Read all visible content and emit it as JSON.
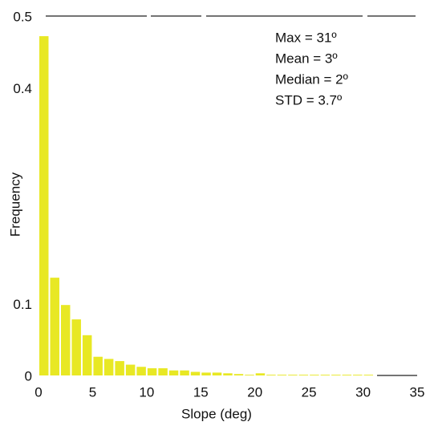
{
  "chart_data": {
    "type": "histogram",
    "xlabel": "Slope (deg)",
    "ylabel": "Frequency",
    "annotations": [
      "Max = 31º",
      "Mean = 3º",
      "Median = 2º",
      "STD = 3.7º"
    ],
    "bins": [
      0,
      1,
      2,
      3,
      4,
      5,
      6,
      7,
      8,
      9,
      10,
      11,
      12,
      13,
      14,
      15,
      16,
      17,
      18,
      19,
      20,
      21,
      22,
      23,
      24,
      25,
      26,
      27,
      28,
      29,
      30,
      31
    ],
    "counts": [
      0.472,
      0.136,
      0.098,
      0.078,
      0.056,
      0.026,
      0.023,
      0.02,
      0.015,
      0.012,
      0.01,
      0.01,
      0.007,
      0.007,
      0.005,
      0.004,
      0.004,
      0.003,
      0.002,
      0.001,
      0.003,
      0.001,
      0.001,
      0.001,
      0.001,
      0.001,
      0.001,
      0.001,
      0.001,
      0.001,
      0.001
    ],
    "color": "#e8e824",
    "xlim": [
      0,
      35
    ],
    "xticks": [
      0,
      5,
      10,
      15,
      20,
      25,
      30,
      35
    ],
    "ylim": [
      0,
      0.5
    ],
    "yticks": [
      0,
      0.1,
      0.4,
      0.5
    ]
  }
}
